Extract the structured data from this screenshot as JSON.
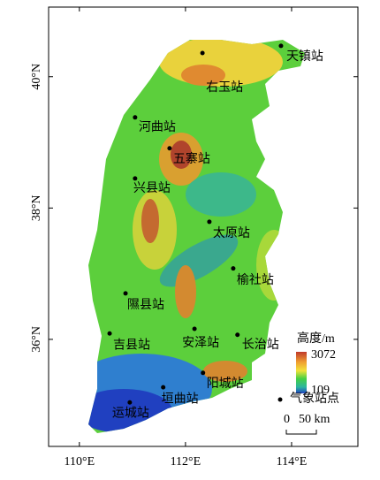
{
  "chart_data": {
    "type": "map",
    "xlim": [
      109.42,
      115.25
    ],
    "ylim": [
      34.37,
      41.06
    ],
    "xticks": [
      {
        "value": 110,
        "label": "110°E"
      },
      {
        "value": 112,
        "label": "112°E"
      },
      {
        "value": 114,
        "label": "114°E"
      }
    ],
    "yticks": [
      {
        "value": 36,
        "label": "36°N"
      },
      {
        "value": 38,
        "label": "38°N"
      },
      {
        "value": 40,
        "label": "40°N"
      }
    ],
    "stations": {
      "names": [
        "天镇站",
        "右玉站",
        "河曲站",
        "五寨站",
        "兴县站",
        "太原站",
        "榆社站",
        "隰县站",
        "吉县站",
        "安泽站",
        "长治站",
        "阳城站",
        "垣曲站",
        "运城站"
      ],
      "lon": [
        113.8,
        112.32,
        111.05,
        111.7,
        111.05,
        112.45,
        112.9,
        110.87,
        110.57,
        112.17,
        112.98,
        112.33,
        111.58,
        110.95
      ],
      "lat": [
        40.47,
        40.36,
        39.38,
        38.91,
        38.45,
        37.79,
        37.08,
        36.7,
        36.09,
        36.16,
        36.07,
        35.49,
        35.27,
        35.04
      ]
    },
    "legend": {
      "title": "高度/m",
      "max_label": "3072",
      "min_label": "109",
      "station_label": "气象站点",
      "scale_zero": "0",
      "scale_label": "50 km"
    }
  }
}
